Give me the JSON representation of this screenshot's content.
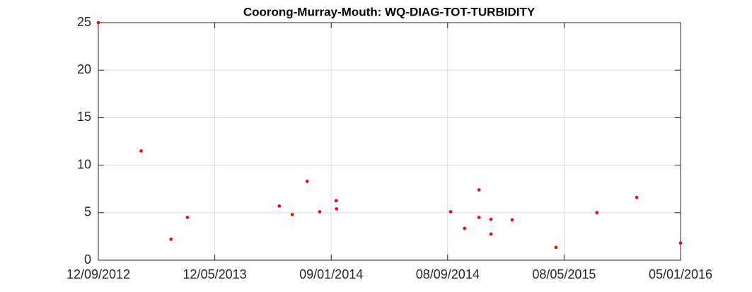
{
  "chart_data": {
    "type": "scatter",
    "title": "Coorong-Murray-Mouth: WQ-DIAG-TOT-TURBIDITY",
    "x": [
      "2012-09-12",
      "2012-12-10",
      "2013-02-10",
      "2013-03-16",
      "2013-09-23",
      "2013-10-20",
      "2013-11-20",
      "2013-12-16",
      "2014-01-19",
      "2014-01-20",
      "2014-09-14",
      "2014-10-13",
      "2014-11-12",
      "2014-11-12",
      "2014-12-07",
      "2014-12-07",
      "2015-01-20",
      "2015-04-21",
      "2015-07-15",
      "2015-10-06",
      "2016-01-05"
    ],
    "values": [
      25,
      11.5,
      2.2,
      4.5,
      5.7,
      4.8,
      8.3,
      5.1,
      6.25,
      5.4,
      5.1,
      3.35,
      7.4,
      4.5,
      4.3,
      2.75,
      4.25,
      1.35,
      5.0,
      6.6,
      1.8
    ],
    "color": "#ff0000",
    "xlim": [
      "2012-09-12",
      "2016-01-05"
    ],
    "xticks": [
      {
        "value": "2012-09-12",
        "label": "12/09/2012"
      },
      {
        "value": "2013-05-12",
        "label": "12/05/2013"
      },
      {
        "value": "2014-01-09",
        "label": "09/01/2014"
      },
      {
        "value": "2014-09-08",
        "label": "08/09/2014"
      },
      {
        "value": "2015-05-08",
        "label": "08/05/2015"
      },
      {
        "value": "2016-01-05",
        "label": "05/01/2016"
      }
    ],
    "ylim": [
      0,
      25
    ],
    "yticks": [
      0,
      5,
      10,
      15,
      20,
      25
    ],
    "grid": true
  }
}
